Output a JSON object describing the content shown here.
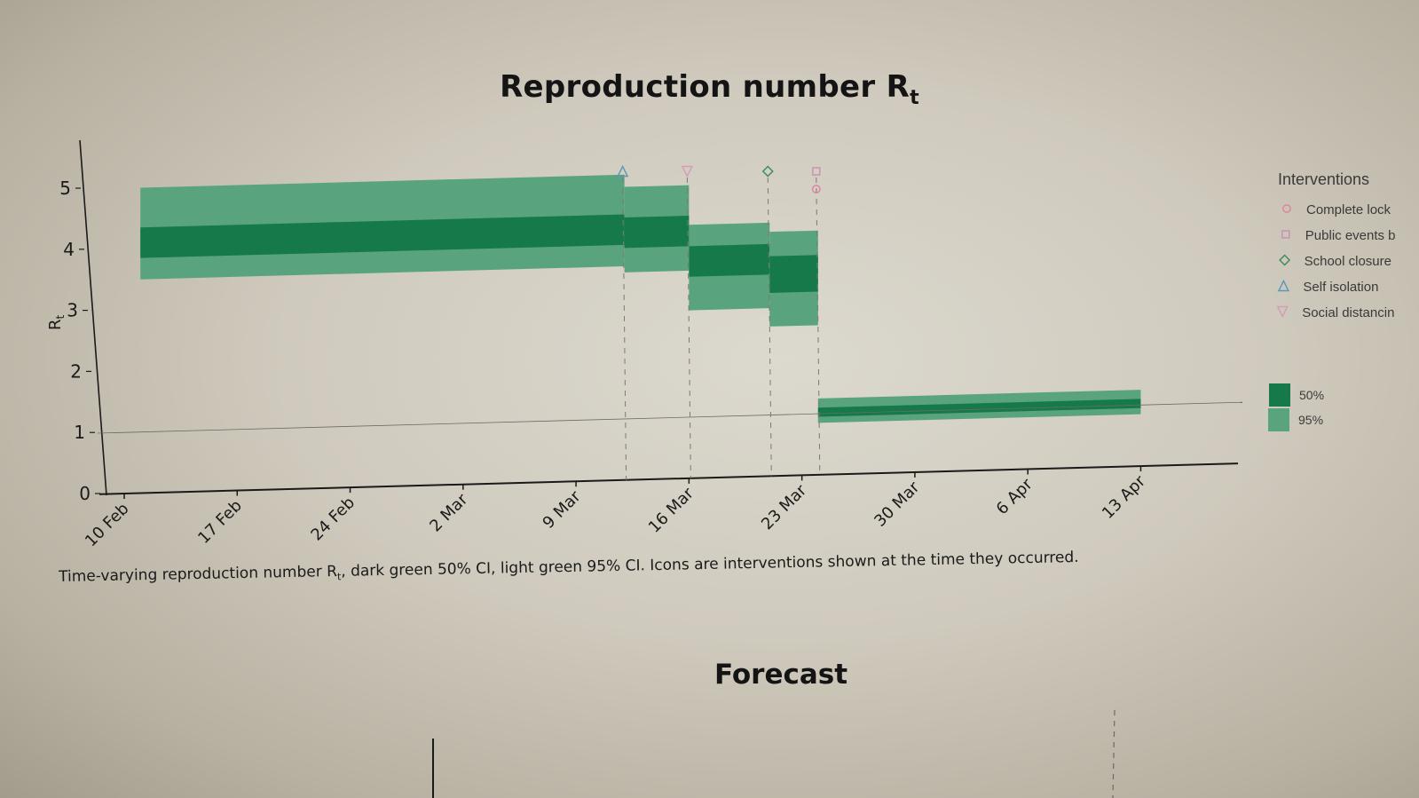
{
  "page": {
    "title_main": "Reproduction number R",
    "title_sub": "t",
    "caption_pre": "Time-varying reproduction number R",
    "caption_sub": "t",
    "caption_post": ", dark green 50% CI, light green 95% CI. Icons are interventions shown at the time they occurred.",
    "next_section_title": "Forecast"
  },
  "colors": {
    "ci95": "#5aa37f",
    "ci50": "#16794a",
    "axis": "#1a1a1a",
    "interventions": {
      "complete_lockdown": "#e27b9c",
      "public_events": "#c98ab0",
      "school_closure": "#3d8a5f",
      "self_isolation": "#5a9ab5",
      "social_distancing": "#d59bb8"
    }
  },
  "chart_data": {
    "type": "area",
    "title": "Reproduction number Rt",
    "ylabel": "Rt",
    "ylim": [
      0,
      5.5
    ],
    "yticks": [
      0,
      1,
      2,
      3,
      4,
      5
    ],
    "xticks": [
      "10 Feb",
      "17 Feb",
      "24 Feb",
      "2 Mar",
      "9 Mar",
      "16 Mar",
      "23 Mar",
      "30 Mar",
      "6 Apr",
      "13 Apr"
    ],
    "xlim": [
      "2020-02-10",
      "2020-04-16"
    ],
    "reference_line": 1,
    "segments": [
      {
        "start": "2020-02-11",
        "end": "2020-03-12",
        "ci95": [
          3.5,
          5.0
        ],
        "ci50": [
          3.85,
          4.35
        ]
      },
      {
        "start": "2020-03-12",
        "end": "2020-03-16",
        "ci95": [
          3.4,
          4.8
        ],
        "ci50": [
          3.8,
          4.3
        ]
      },
      {
        "start": "2020-03-16",
        "end": "2020-03-21",
        "ci95": [
          2.75,
          4.15
        ],
        "ci50": [
          3.3,
          3.8
        ]
      },
      {
        "start": "2020-03-21",
        "end": "2020-03-24",
        "ci95": [
          2.45,
          4.0
        ],
        "ci50": [
          3.0,
          3.6
        ]
      },
      {
        "start": "2020-03-24",
        "end": "2020-04-13",
        "ci95": [
          0.85,
          1.25
        ],
        "ci50": [
          0.95,
          1.1
        ]
      }
    ],
    "interventions": [
      {
        "date": "2020-03-12",
        "marker": "triangle-up",
        "key": "self_isolation"
      },
      {
        "date": "2020-03-16",
        "marker": "triangle-down",
        "key": "social_distancing"
      },
      {
        "date": "2020-03-21",
        "marker": "diamond",
        "key": "school_closure"
      },
      {
        "date": "2020-03-24",
        "marker": "square",
        "key": "public_events"
      },
      {
        "date": "2020-03-24",
        "marker": "circle",
        "key": "complete_lockdown"
      }
    ],
    "legend": {
      "title": "Interventions",
      "placement": "right",
      "items": [
        {
          "label": "Complete lock",
          "marker": "circle",
          "key": "complete_lockdown"
        },
        {
          "label": "Public events b",
          "marker": "square",
          "key": "public_events"
        },
        {
          "label": "School closure",
          "marker": "diamond",
          "key": "school_closure"
        },
        {
          "label": "Self isolation",
          "marker": "triangle-up",
          "key": "self_isolation"
        },
        {
          "label": "Social distancin",
          "marker": "triangle-down",
          "key": "social_distancing"
        }
      ],
      "ci_items": [
        {
          "label": "50%",
          "key": "ci50"
        },
        {
          "label": "95%",
          "key": "ci95"
        }
      ]
    }
  }
}
